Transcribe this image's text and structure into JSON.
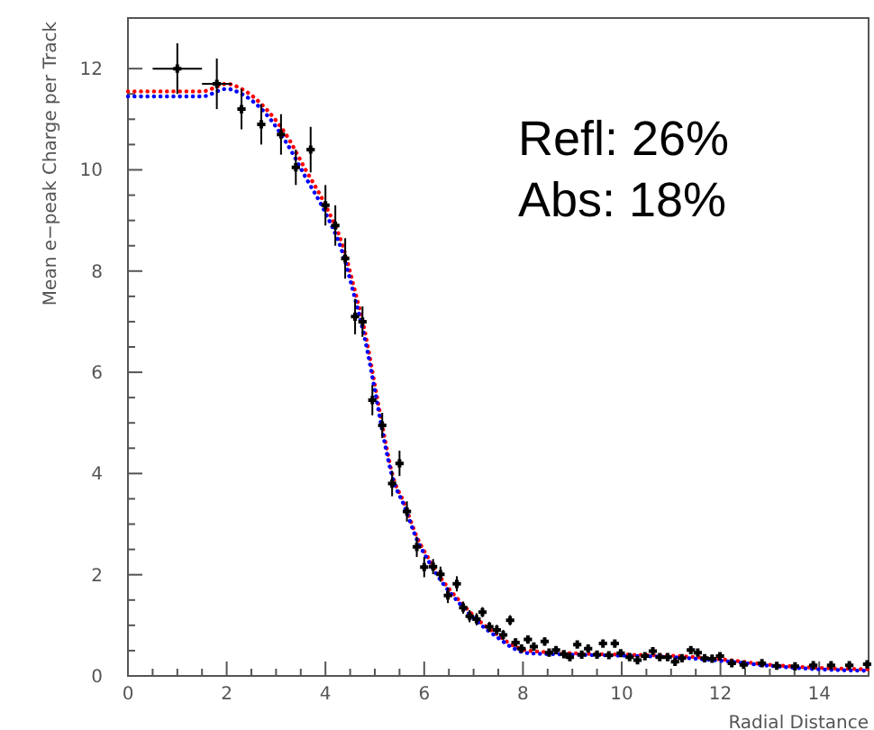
{
  "chart_data": {
    "type": "scatter",
    "xlabel": "Radial Distance",
    "ylabel": "Mean e−peak Charge per Track",
    "xlim": [
      0,
      15
    ],
    "ylim": [
      0,
      13
    ],
    "xticks": [
      0,
      2,
      4,
      6,
      8,
      10,
      12,
      14
    ],
    "yticks": [
      0,
      2,
      4,
      6,
      8,
      10,
      12
    ],
    "grid": false,
    "annotations": [
      "Refl: 26%",
      "Abs: 18%"
    ],
    "series": [
      {
        "type": "line",
        "color": "#ff0000",
        "line_style": "dotted",
        "x": [
          0,
          1.5,
          2.0,
          2.3,
          2.8,
          3.2,
          3.6,
          4.0,
          4.35,
          4.6,
          4.8,
          5.0,
          5.2,
          5.35,
          5.6,
          5.85,
          6.1,
          6.4,
          6.7,
          7.1,
          7.5,
          7.8,
          8.1,
          9,
          10,
          11,
          12,
          13,
          14,
          15
        ],
        "values": [
          11.55,
          11.55,
          11.7,
          11.6,
          11.2,
          10.7,
          10.0,
          9.3,
          8.5,
          7.6,
          6.8,
          5.75,
          4.7,
          4.0,
          3.4,
          2.75,
          2.3,
          1.85,
          1.5,
          1.1,
          0.8,
          0.6,
          0.5,
          0.45,
          0.42,
          0.4,
          0.33,
          0.22,
          0.16,
          0.13
        ]
      },
      {
        "type": "line",
        "color": "#0000ff",
        "line_style": "dotted",
        "x": [
          0,
          1.5,
          2.0,
          2.3,
          2.8,
          3.2,
          3.6,
          4.0,
          4.35,
          4.6,
          4.8,
          5.0,
          5.2,
          5.35,
          5.6,
          5.85,
          6.1,
          6.4,
          6.7,
          7.1,
          7.5,
          7.8,
          8.1,
          9,
          10,
          11,
          12,
          13,
          14,
          15
        ],
        "values": [
          11.45,
          11.45,
          11.6,
          11.5,
          11.1,
          10.55,
          9.85,
          9.15,
          8.35,
          7.45,
          6.65,
          5.65,
          4.6,
          3.95,
          3.35,
          2.7,
          2.25,
          1.8,
          1.45,
          1.05,
          0.75,
          0.55,
          0.45,
          0.42,
          0.4,
          0.37,
          0.3,
          0.2,
          0.13,
          0.1
        ]
      },
      {
        "color": "#000000",
        "marker": "cross",
        "x": [
          1.0,
          1.8,
          2.3,
          2.7,
          3.1,
          3.4,
          3.7,
          4.0,
          4.2,
          4.4,
          4.6,
          4.75,
          4.95,
          5.15,
          5.35,
          5.5,
          5.65,
          5.85,
          6.0,
          6.18,
          6.33,
          6.48,
          6.66,
          6.79,
          6.92,
          7.06,
          7.18,
          7.32,
          7.47,
          7.6,
          7.74,
          7.85,
          7.97,
          8.1,
          8.22,
          8.44,
          8.53,
          8.67,
          8.83,
          8.95,
          9.1,
          9.19,
          9.32,
          9.5,
          9.62,
          9.74,
          9.86,
          9.98,
          10.16,
          10.32,
          10.47,
          10.63,
          10.77,
          10.93,
          11.08,
          11.22,
          11.4,
          11.54,
          11.68,
          11.83,
          11.99,
          12.23,
          12.47,
          12.84,
          13.14,
          13.51,
          13.88,
          14.24,
          14.61,
          14.97
        ],
        "values": [
          12.0,
          11.7,
          11.2,
          10.9,
          10.7,
          10.05,
          10.4,
          9.3,
          8.9,
          8.25,
          7.1,
          7.0,
          5.45,
          4.95,
          3.8,
          4.2,
          3.25,
          2.55,
          2.15,
          2.16,
          2.01,
          1.59,
          1.82,
          1.35,
          1.18,
          1.12,
          1.26,
          0.97,
          0.91,
          0.81,
          1.1,
          0.66,
          0.54,
          0.72,
          0.58,
          0.68,
          0.46,
          0.51,
          0.43,
          0.37,
          0.62,
          0.42,
          0.54,
          0.42,
          0.64,
          0.41,
          0.64,
          0.45,
          0.37,
          0.31,
          0.39,
          0.49,
          0.37,
          0.37,
          0.28,
          0.35,
          0.51,
          0.46,
          0.35,
          0.34,
          0.39,
          0.25,
          0.22,
          0.25,
          0.2,
          0.19,
          0.21,
          0.21,
          0.21,
          0.23
        ],
        "errors": [
          0.5,
          0.5,
          0.4,
          0.4,
          0.4,
          0.35,
          0.45,
          0.4,
          0.4,
          0.4,
          0.35,
          0.3,
          0.3,
          0.25,
          0.25,
          0.25,
          0.2,
          0.2,
          0.2,
          0.15,
          0.15,
          0.15,
          0.15,
          0.12,
          0.12,
          0.12,
          0.1,
          0.1,
          0.1,
          0.1,
          0.1,
          0.08,
          0.08,
          0.08,
          0.08,
          0.08,
          0.06,
          0.06,
          0.06,
          0.06,
          0.06,
          0.06,
          0.06,
          0.06,
          0.06,
          0.06,
          0.06,
          0.06,
          0.05,
          0.05,
          0.05,
          0.05,
          0.05,
          0.05,
          0.05,
          0.05,
          0.05,
          0.05,
          0.05,
          0.05,
          0.05,
          0.04,
          0.04,
          0.04,
          0.04,
          0.04,
          0.04,
          0.04,
          0.04,
          0.04
        ],
        "xerrors": [
          0.5,
          0.3,
          null,
          null,
          null,
          null,
          null,
          null,
          null,
          null,
          null,
          null,
          null,
          null,
          null,
          null,
          null,
          null,
          null,
          null,
          null,
          null,
          null,
          null,
          null,
          null,
          null,
          null,
          null,
          null,
          null,
          null,
          null,
          null,
          null,
          null,
          null,
          null,
          null,
          null,
          null,
          null,
          null,
          null,
          null,
          null,
          null,
          null,
          null,
          null,
          null,
          null,
          null,
          null,
          null,
          null,
          null,
          null,
          null,
          null,
          null,
          null,
          null,
          null,
          null,
          null,
          null,
          null,
          null,
          null
        ]
      }
    ]
  }
}
